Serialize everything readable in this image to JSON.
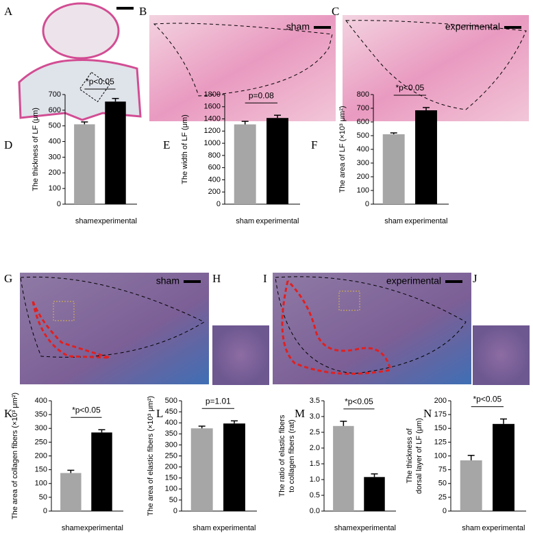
{
  "chart_data": [
    {
      "type": "bar",
      "panel": "D",
      "ylabel": [
        "The thickness of LF (μm)"
      ],
      "categories": [
        "sham",
        "experimental"
      ],
      "values": [
        510,
        655
      ],
      "errors": [
        15,
        20
      ],
      "colors": [
        "#a6a6a6",
        "#000000"
      ],
      "ylim": [
        0,
        700
      ],
      "yticks": [
        0,
        100,
        200,
        300,
        400,
        500,
        600,
        700
      ],
      "annotation": "*p<0.05"
    },
    {
      "type": "bar",
      "panel": "E",
      "ylabel": [
        "The width of LF (μm)"
      ],
      "categories": [
        "sham",
        "experimental"
      ],
      "values": [
        1310,
        1415
      ],
      "errors": [
        50,
        45
      ],
      "colors": [
        "#a6a6a6",
        "#000000"
      ],
      "ylim": [
        0,
        1800
      ],
      "yticks": [
        0,
        200,
        400,
        600,
        800,
        1000,
        1200,
        1400,
        1600,
        1800
      ],
      "annotation": "p=0.08"
    },
    {
      "type": "bar",
      "panel": "F",
      "ylabel": [
        "The area of LF (×10³ μm²)"
      ],
      "categories": [
        "sham",
        "experimental"
      ],
      "values": [
        510,
        685
      ],
      "errors": [
        10,
        20
      ],
      "colors": [
        "#a6a6a6",
        "#000000"
      ],
      "ylim": [
        0,
        800
      ],
      "yticks": [
        0,
        100,
        200,
        300,
        400,
        500,
        600,
        700,
        800
      ],
      "annotation": "*p<0.05"
    },
    {
      "type": "bar",
      "panel": "K",
      "ylabel": [
        "The area of collagen fibers (×10³ μm²)"
      ],
      "categories": [
        "sham",
        "experimental"
      ],
      "values": [
        138,
        285
      ],
      "errors": [
        10,
        10
      ],
      "colors": [
        "#a6a6a6",
        "#000000"
      ],
      "ylim": [
        0,
        400
      ],
      "yticks": [
        0,
        50,
        100,
        150,
        200,
        250,
        300,
        350,
        400
      ],
      "annotation": "*p<0.05"
    },
    {
      "type": "bar",
      "panel": "L",
      "ylabel": [
        "The area of elastic fibers (×10³ μm²)"
      ],
      "categories": [
        "sham",
        "experimental"
      ],
      "values": [
        375,
        397
      ],
      "errors": [
        10,
        12
      ],
      "colors": [
        "#a6a6a6",
        "#000000"
      ],
      "ylim": [
        0,
        500
      ],
      "yticks": [
        0,
        50,
        100,
        150,
        200,
        250,
        300,
        350,
        400,
        450,
        500
      ],
      "annotation": "p=1.01"
    },
    {
      "type": "bar",
      "panel": "M",
      "ylabel": [
        "The ratio of elastic fibers",
        "to collagen fibers (rat)"
      ],
      "categories": [
        "sham",
        "experimental"
      ],
      "values": [
        2.7,
        1.08
      ],
      "errors": [
        0.15,
        0.1
      ],
      "colors": [
        "#a6a6a6",
        "#000000"
      ],
      "ylim": [
        0,
        3.5
      ],
      "yticks": [
        {
          "value": 0,
          "label": "0.0"
        },
        0.5,
        {
          "value": 1,
          "label": "1.0"
        },
        1.5,
        {
          "value": 2,
          "label": "2.0"
        },
        2.5,
        {
          "value": 3,
          "label": "3.0"
        },
        3.5
      ],
      "annotation": "*p<0.05"
    },
    {
      "type": "bar",
      "panel": "N",
      "ylabel": [
        "The thickness of",
        "dorsal layer of LF (μm)"
      ],
      "categories": [
        "sham",
        "experimental"
      ],
      "values": [
        92,
        158
      ],
      "errors": [
        9,
        9
      ],
      "colors": [
        "#a6a6a6",
        "#000000"
      ],
      "ylim": [
        0,
        200
      ],
      "yticks": [
        0,
        25,
        50,
        75,
        100,
        125,
        150,
        175,
        200
      ],
      "annotation": "*p<0.05"
    }
  ],
  "figure": {
    "image_panels": [
      "A",
      "B",
      "C",
      "G",
      "H",
      "I",
      "J"
    ],
    "image_labels": [
      "sham",
      "experimental",
      "sham",
      "experimental"
    ]
  }
}
